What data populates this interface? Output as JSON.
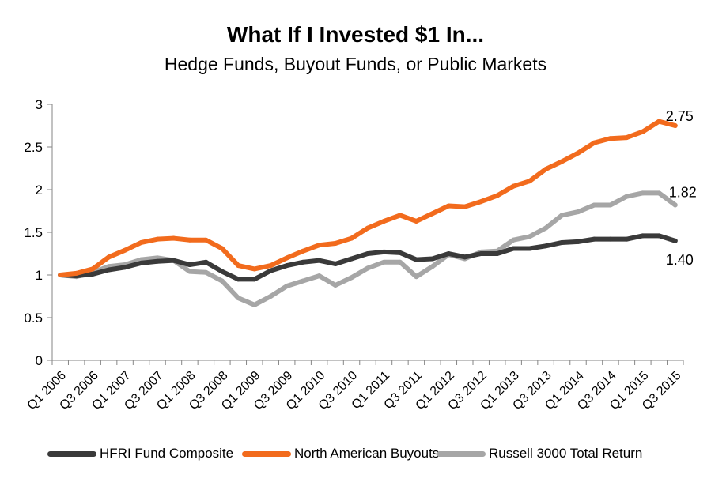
{
  "chart_data": {
    "type": "line",
    "title": "What If I Invested $1 In...",
    "subtitle": "Hedge Funds, Buyout Funds, or Public Markets",
    "xlabel": "",
    "ylabel": "",
    "ylim": [
      0,
      3
    ],
    "yticks": [
      "0",
      "0.5",
      "1",
      "1.5",
      "2",
      "2.5",
      "3"
    ],
    "grid": false,
    "legend_position": "bottom",
    "x": [
      "Q1 2006",
      "Q2 2006",
      "Q3 2006",
      "Q4 2006",
      "Q1 2007",
      "Q2 2007",
      "Q3 2007",
      "Q4 2007",
      "Q1 2008",
      "Q2 2008",
      "Q3 2008",
      "Q4 2008",
      "Q1 2009",
      "Q2 2009",
      "Q3 2009",
      "Q4 2009",
      "Q1 2010",
      "Q2 2010",
      "Q3 2010",
      "Q4 2010",
      "Q1 2011",
      "Q2 2011",
      "Q3 2011",
      "Q4 2011",
      "Q1 2012",
      "Q2 2012",
      "Q3 2012",
      "Q4 2012",
      "Q1 2013",
      "Q2 2013",
      "Q3 2013",
      "Q4 2013",
      "Q1 2014",
      "Q2 2014",
      "Q3 2014",
      "Q4 2014",
      "Q1 2015",
      "Q2 2015",
      "Q3 2015"
    ],
    "xticks_shown": [
      "Q1 2006",
      "Q3 2006",
      "Q1 2007",
      "Q3 2007",
      "Q1 2008",
      "Q3 2008",
      "Q1 2009",
      "Q3 2009",
      "Q1 2010",
      "Q3 2010",
      "Q1 2011",
      "Q3 2011",
      "Q1 2012",
      "Q3 2012",
      "Q1 2013",
      "Q3 2013",
      "Q1 2014",
      "Q3 2014",
      "Q1 2015",
      "Q3 2015"
    ],
    "series": [
      {
        "name": "HFRI Fund Composite",
        "color": "#3a3a3a",
        "end_label": "1.40",
        "values": [
          1.0,
          0.99,
          1.01,
          1.06,
          1.09,
          1.14,
          1.16,
          1.17,
          1.12,
          1.15,
          1.04,
          0.95,
          0.95,
          1.05,
          1.11,
          1.15,
          1.17,
          1.13,
          1.19,
          1.25,
          1.27,
          1.26,
          1.18,
          1.19,
          1.25,
          1.21,
          1.25,
          1.25,
          1.31,
          1.31,
          1.34,
          1.38,
          1.39,
          1.42,
          1.42,
          1.42,
          1.46,
          1.46,
          1.4
        ]
      },
      {
        "name": "North American Buyouts",
        "color": "#f26b1d",
        "end_label": "2.75",
        "values": [
          1.0,
          1.02,
          1.07,
          1.21,
          1.29,
          1.38,
          1.42,
          1.43,
          1.41,
          1.41,
          1.31,
          1.11,
          1.07,
          1.11,
          1.2,
          1.28,
          1.35,
          1.37,
          1.43,
          1.55,
          1.63,
          1.7,
          1.63,
          1.72,
          1.81,
          1.8,
          1.86,
          1.93,
          2.04,
          2.1,
          2.24,
          2.33,
          2.43,
          2.55,
          2.6,
          2.61,
          2.68,
          2.8,
          2.75
        ]
      },
      {
        "name": "Russell 3000 Total Return",
        "color": "#a6a6a6",
        "end_label": "1.82",
        "values": [
          1.0,
          0.98,
          1.03,
          1.1,
          1.12,
          1.18,
          1.2,
          1.17,
          1.04,
          1.03,
          0.93,
          0.73,
          0.65,
          0.75,
          0.87,
          0.93,
          0.99,
          0.88,
          0.97,
          1.08,
          1.15,
          1.15,
          0.98,
          1.1,
          1.24,
          1.19,
          1.27,
          1.28,
          1.41,
          1.45,
          1.55,
          1.7,
          1.74,
          1.82,
          1.82,
          1.92,
          1.96,
          1.96,
          1.82
        ]
      }
    ]
  }
}
